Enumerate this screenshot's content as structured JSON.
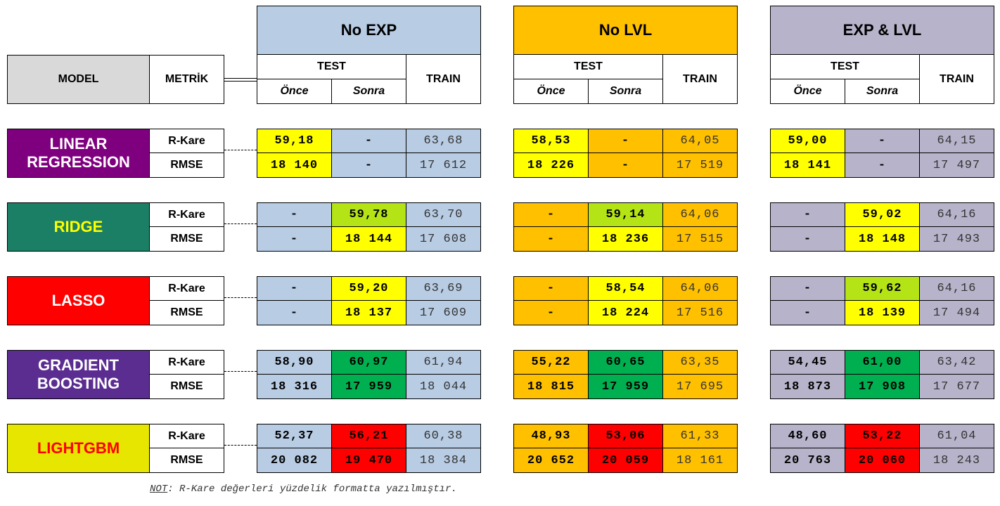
{
  "header": {
    "model": "MODEL",
    "metric": "METRİK",
    "groups": [
      {
        "title": "No EXP",
        "bg": "#b8cce4",
        "test": "TEST",
        "before": "Önce",
        "after": "Sonra",
        "train": "TRAIN"
      },
      {
        "title": "No LVL",
        "bg": "#ffc000",
        "test": "TEST",
        "before": "Önce",
        "after": "Sonra",
        "train": "TRAIN"
      },
      {
        "title": "EXP & LVL",
        "bg": "#b7b3ca",
        "test": "TEST",
        "before": "Önce",
        "after": "Sonra",
        "train": "TRAIN"
      }
    ]
  },
  "colors": {
    "yellow": "#ffff00",
    "lime": "#b4e415",
    "green": "#00b050",
    "red": "#ff0000",
    "blue": "#b8cce4",
    "orange": "#ffc000",
    "lavender": "#b7b3ca"
  },
  "models": [
    {
      "name": "LINEAR\nREGRESSION",
      "bg": "#7f007f",
      "fg": "#ffffff",
      "metrics": [
        "R-Kare",
        "RMSE"
      ],
      "groups": [
        {
          "rows": [
            [
              "59,18",
              "-",
              "63,68"
            ],
            [
              "18 140",
              "-",
              "17 612"
            ]
          ],
          "colors": [
            "#ffff00",
            "#b8cce4",
            "#b8cce4"
          ]
        },
        {
          "rows": [
            [
              "58,53",
              "-",
              "64,05"
            ],
            [
              "18 226",
              "-",
              "17 519"
            ]
          ],
          "colors": [
            "#ffff00",
            "#ffc000",
            "#ffc000"
          ]
        },
        {
          "rows": [
            [
              "59,00",
              "-",
              "64,15"
            ],
            [
              "18 141",
              "-",
              "17 497"
            ]
          ],
          "colors": [
            "#ffff00",
            "#b7b3ca",
            "#b7b3ca"
          ]
        }
      ]
    },
    {
      "name": "RIDGE",
      "bg": "#1a7f64",
      "fg": "#ffff00",
      "metrics": [
        "R-Kare",
        "RMSE"
      ],
      "groups": [
        {
          "rows": [
            [
              "-",
              "59,78",
              "63,70"
            ],
            [
              "-",
              "18 144",
              "17 608"
            ]
          ],
          "colors": [
            "#b8cce4",
            "#b4e415",
            "#b8cce4"
          ],
          "colors2": [
            "#b8cce4",
            "#ffff00",
            "#b8cce4"
          ]
        },
        {
          "rows": [
            [
              "-",
              "59,14",
              "64,06"
            ],
            [
              "-",
              "18 236",
              "17 515"
            ]
          ],
          "colors": [
            "#ffc000",
            "#b4e415",
            "#ffc000"
          ],
          "colors2": [
            "#ffc000",
            "#ffff00",
            "#ffc000"
          ]
        },
        {
          "rows": [
            [
              "-",
              "59,02",
              "64,16"
            ],
            [
              "-",
              "18 148",
              "17 493"
            ]
          ],
          "colors": [
            "#b7b3ca",
            "#ffff00",
            "#b7b3ca"
          ],
          "colors2": [
            "#b7b3ca",
            "#ffff00",
            "#b7b3ca"
          ]
        }
      ]
    },
    {
      "name": "LASSO",
      "bg": "#ff0000",
      "fg": "#ffffff",
      "metrics": [
        "R-Kare",
        "RMSE"
      ],
      "groups": [
        {
          "rows": [
            [
              "-",
              "59,20",
              "63,69"
            ],
            [
              "-",
              "18 137",
              "17 609"
            ]
          ],
          "colors": [
            "#b8cce4",
            "#ffff00",
            "#b8cce4"
          ]
        },
        {
          "rows": [
            [
              "-",
              "58,54",
              "64,06"
            ],
            [
              "-",
              "18 224",
              "17 516"
            ]
          ],
          "colors": [
            "#ffc000",
            "#ffff00",
            "#ffc000"
          ]
        },
        {
          "rows": [
            [
              "-",
              "59,62",
              "64,16"
            ],
            [
              "-",
              "18 139",
              "17 494"
            ]
          ],
          "colors": [
            "#b7b3ca",
            "#b4e415",
            "#b7b3ca"
          ],
          "colors2": [
            "#b7b3ca",
            "#ffff00",
            "#b7b3ca"
          ]
        }
      ]
    },
    {
      "name": "GRADIENT\nBOOSTING",
      "bg": "#5b2d91",
      "fg": "#ffffff",
      "metrics": [
        "R-Kare",
        "RMSE"
      ],
      "groups": [
        {
          "rows": [
            [
              "58,90",
              "60,97",
              "61,94"
            ],
            [
              "18 316",
              "17 959",
              "18 044"
            ]
          ],
          "colors": [
            "#b8cce4",
            "#00b050",
            "#b8cce4"
          ]
        },
        {
          "rows": [
            [
              "55,22",
              "60,65",
              "63,35"
            ],
            [
              "18 815",
              "17 959",
              "17 695"
            ]
          ],
          "colors": [
            "#ffc000",
            "#00b050",
            "#ffc000"
          ]
        },
        {
          "rows": [
            [
              "54,45",
              "61,00",
              "63,42"
            ],
            [
              "18 873",
              "17 908",
              "17 677"
            ]
          ],
          "colors": [
            "#b7b3ca",
            "#00b050",
            "#b7b3ca"
          ]
        }
      ]
    },
    {
      "name": "LIGHTGBM",
      "bg": "#e6e600",
      "fg": "#ff0000",
      "metrics": [
        "R-Kare",
        "RMSE"
      ],
      "groups": [
        {
          "rows": [
            [
              "52,37",
              "56,21",
              "60,38"
            ],
            [
              "20 082",
              "19 470",
              "18 384"
            ]
          ],
          "colors": [
            "#b8cce4",
            "#ff0000",
            "#b8cce4"
          ]
        },
        {
          "rows": [
            [
              "48,93",
              "53,06",
              "61,33"
            ],
            [
              "20 652",
              "20 059",
              "18 161"
            ]
          ],
          "colors": [
            "#ffc000",
            "#ff0000",
            "#ffc000"
          ]
        },
        {
          "rows": [
            [
              "48,60",
              "53,22",
              "61,04"
            ],
            [
              "20 763",
              "20 060",
              "18 243"
            ]
          ],
          "colors": [
            "#b7b3ca",
            "#ff0000",
            "#b7b3ca"
          ]
        }
      ]
    }
  ],
  "note": {
    "label": "NOT",
    "text": ": R-Kare değerleri yüzdelik formatta yazılmıştır."
  }
}
